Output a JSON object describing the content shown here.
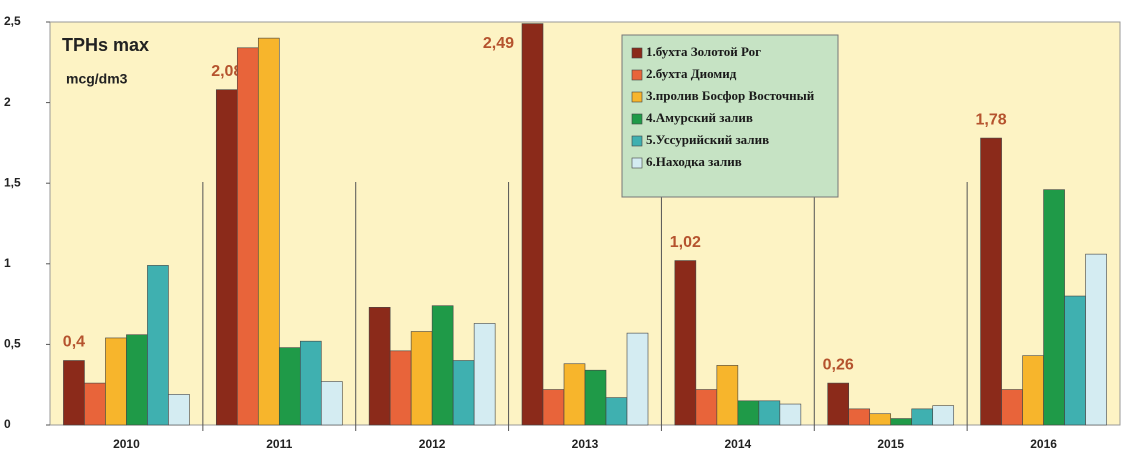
{
  "chart_data": {
    "type": "bar",
    "annotations": [
      "TPHs max",
      "mcg/dm3"
    ],
    "categories": [
      "2010",
      "2011",
      "2012",
      "2013",
      "2014",
      "2015",
      "2016"
    ],
    "series": [
      {
        "name": "1.бухта Золотой Рог",
        "color": "#8b2a1a",
        "values": [
          0.4,
          2.08,
          0.73,
          2.49,
          1.02,
          0.26,
          1.78
        ],
        "value_labels": [
          "0,4",
          "2,08",
          null,
          "2,49",
          "1,02",
          "0,26",
          "1,78"
        ]
      },
      {
        "name": "2.бухта Диомид",
        "color": "#e8643a",
        "values": [
          0.26,
          2.34,
          0.46,
          0.22,
          0.22,
          0.1,
          0.22
        ]
      },
      {
        "name": "3.пролив Босфор Восточный",
        "color": "#f7b52c",
        "values": [
          0.54,
          2.4,
          0.58,
          0.38,
          0.37,
          0.07,
          0.43
        ]
      },
      {
        "name": "4.Амурский залив",
        "color": "#1f9a48",
        "values": [
          0.56,
          0.48,
          0.74,
          0.34,
          0.15,
          0.04,
          1.46
        ]
      },
      {
        "name": "5.Уссурийский залив",
        "color": "#3fb0b0",
        "values": [
          0.99,
          0.52,
          0.4,
          0.17,
          0.15,
          0.1,
          0.8
        ]
      },
      {
        "name": "6.Находка залив",
        "color": "#d4ecf2",
        "values": [
          0.19,
          0.27,
          0.63,
          0.57,
          0.13,
          0.12,
          1.06
        ]
      }
    ],
    "ylim": [
      0,
      2.5
    ],
    "yticks": [
      0,
      {
        "value": 0.5,
        "label": "0,5"
      },
      1,
      {
        "value": 1.5,
        "label": "1,5"
      },
      2,
      {
        "value": 2.5,
        "label": "2,5"
      }
    ]
  }
}
